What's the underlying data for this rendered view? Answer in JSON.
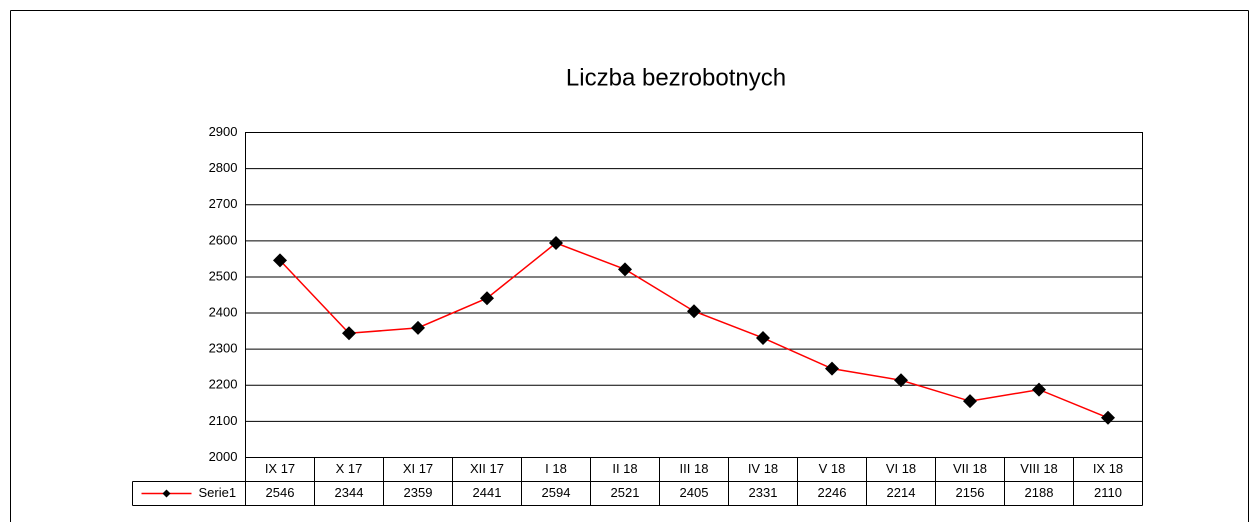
{
  "chart_data": {
    "type": "line",
    "title": "Liczba bezrobotnych",
    "categories": [
      "IX 17",
      "X 17",
      "XI 17",
      "XII 17",
      "I 18",
      "II 18",
      "III 18",
      "IV 18",
      "V 18",
      "VI 18",
      "VII 18",
      "VIII 18",
      "IX 18"
    ],
    "series": [
      {
        "name": "Serie1",
        "color": "#ff0000",
        "marker_color": "#000000",
        "values": [
          2546,
          2344,
          2359,
          2441,
          2594,
          2521,
          2405,
          2331,
          2246,
          2214,
          2156,
          2188,
          2110
        ]
      }
    ],
    "ylim": [
      2000,
      2900
    ],
    "yticks": [
      2000,
      2100,
      2200,
      2300,
      2400,
      2500,
      2600,
      2700,
      2800,
      2900
    ],
    "grid": true,
    "data_table": true
  }
}
